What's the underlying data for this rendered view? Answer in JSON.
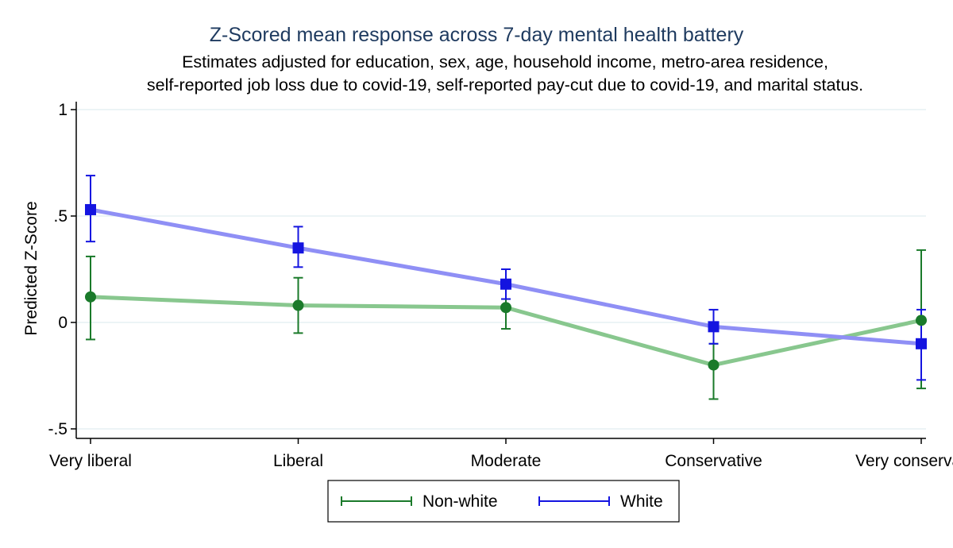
{
  "chart_data": {
    "type": "line",
    "title": "Z-Scored mean response across 7-day mental health battery",
    "subtitle_lines": [
      "Estimates adjusted for education, sex, age, household income, metro-area residence,",
      "self-reported job loss due to covid-19, self-reported pay-cut due to covid-19, and marital status."
    ],
    "xlabel": "",
    "ylabel": "Predicted Z-Score",
    "categories": [
      "Very liberal",
      "Liberal",
      "Moderate",
      "Conservative",
      "Very conservative"
    ],
    "ylim": [
      -0.5,
      1
    ],
    "yticks": [
      {
        "value": 1,
        "label": "1"
      },
      {
        "value": 0.5,
        "label": ".5"
      },
      {
        "value": 0,
        "label": "0"
      },
      {
        "value": -0.5,
        "label": "-.5"
      }
    ],
    "grid": true,
    "legend_position": "bottom",
    "series": [
      {
        "name": "Non-white",
        "line_color": "#88c78e",
        "marker_color": "#1a7a2a",
        "marker": "circle",
        "values": [
          0.12,
          0.08,
          0.07,
          -0.2,
          0.01
        ],
        "ci_low": [
          -0.08,
          -0.05,
          -0.03,
          -0.36,
          -0.31
        ],
        "ci_high": [
          0.31,
          0.21,
          0.11,
          -0.1,
          0.34
        ]
      },
      {
        "name": "White",
        "line_color": "#8f8ff5",
        "marker_color": "#1414e0",
        "marker": "square",
        "values": [
          0.53,
          0.35,
          0.18,
          -0.02,
          -0.1
        ],
        "ci_low": [
          0.38,
          0.26,
          0.11,
          -0.1,
          -0.27
        ],
        "ci_high": [
          0.69,
          0.45,
          0.25,
          0.06,
          0.06
        ]
      }
    ]
  }
}
